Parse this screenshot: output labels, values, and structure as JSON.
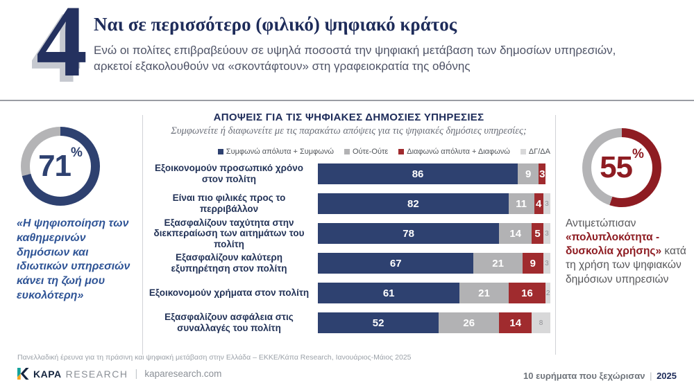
{
  "colors": {
    "navy": "#2e4170",
    "gray": "#b2b2b4",
    "red": "#a02b2e",
    "light_gray": "#d8d8d9",
    "title_navy": "#1e2c5a",
    "accent_blue": "#2f5496",
    "accent_red": "#8e1c22"
  },
  "header": {
    "number": "4",
    "title": "Ναι σε περισσότερο (φιλικό) ψηφιακό κράτος",
    "subtitle": "Ενώ οι πολίτες επιβραβεύουν σε υψηλά ποσοστά την ψηφιακή μετάβαση των δημοσίων υπηρεσιών, αρκετοί εξακολουθούν να «σκοντάφτουν» στη γραφειοκρατία της οθόνης"
  },
  "left_panel": {
    "donut": {
      "value": 71,
      "display": "71",
      "symbol": "%",
      "color": "#2e4170",
      "track": "#b4b4b6"
    },
    "quote": "«Η ψηφιοποίηση των καθημερινών δημόσιων και ιδιωτικών υπηρεσιών κάνει τη ζωή μου ευκολότερη»"
  },
  "chart_data": {
    "type": "bar",
    "orientation": "horizontal",
    "stacked": true,
    "title": "ΑΠΟΨΕΙΣ ΓΙΑ ΤΙΣ ΨΗΦΙΑΚΕΣ ΔΗΜΟΣΙΕΣ ΥΠΗΡΕΣΙΕΣ",
    "subtitle": "Συμφωνείτε ή διαφωνείτε με τις παρακάτω απόψεις για τις ψηφιακές δημόσιες υπηρεσίες;",
    "xlim": [
      0,
      100
    ],
    "grid": false,
    "legend_position": "top-right",
    "legend": [
      {
        "key": "agree",
        "label": "Συμφωνώ απόλυτα + Συμφωνώ",
        "color": "#2e4170"
      },
      {
        "key": "neutral",
        "label": "Ούτε-Ούτε",
        "color": "#b2b2b4"
      },
      {
        "key": "disagree",
        "label": "Διαφωνώ απόλυτα + Διαφωνώ",
        "color": "#a02b2e"
      },
      {
        "key": "unsure",
        "label": "ΔΓ/ΔΑ",
        "color": "#d8d8d9"
      }
    ],
    "categories": [
      "Εξοικονομούν προσωπικό χρόνο στον πολίτη",
      "Είναι πιο φιλικές προς το περριβάλλον",
      "Εξασφαλίζουν ταχύτητα στην διεκπεραίωση των αιτημάτων του πολίτη",
      "Εξασφαλίζουν καλύτερη εξυπηρέτηση στον πολίτη",
      "Εξοικονομούν χρήματα στον πολίτη",
      "Εξασφαλίζουν ασφάλεια στις συναλλαγές του πολίτη"
    ],
    "series": [
      {
        "name": "Συμφωνώ απόλυτα + Συμφωνώ",
        "values": [
          86,
          82,
          78,
          67,
          61,
          52
        ]
      },
      {
        "name": "Ούτε-Ούτε",
        "values": [
          9,
          11,
          14,
          21,
          21,
          26
        ]
      },
      {
        "name": "Διαφωνώ απόλυτα + Διαφωνώ",
        "values": [
          3,
          4,
          5,
          9,
          16,
          14
        ]
      },
      {
        "name": "ΔΓ/ΔΑ",
        "values": [
          null,
          3,
          3,
          3,
          2,
          8
        ]
      }
    ]
  },
  "right_panel": {
    "donut": {
      "value": 55,
      "display": "55",
      "symbol": "%",
      "color": "#8e1c22",
      "track": "#b4b4b6"
    },
    "text_before": "Αντιμετώπισαν ",
    "text_highlight": "«πολυπλοκότητα - δυσκολία χρήσης»",
    "text_after": " κατά τη χρήση των ψηφιακών δημόσιων υπηρεσιών"
  },
  "footnote": "Πανελλαδική έρευνα για τη πράσινη και ψηφιακή μετάβαση στην Ελλάδα – ΕΚΚΕ/Κάπα Research, Ιανουάριος-Μάιος 2025",
  "footer": {
    "logo": {
      "brand_bold": "KAPA",
      "brand_light": "RESEARCH",
      "divider": "|",
      "site": "kaparesearch.com"
    },
    "right": {
      "text": "10 ευρήματα που ξεχώρισαν",
      "divider": "|",
      "year": "2025"
    }
  }
}
